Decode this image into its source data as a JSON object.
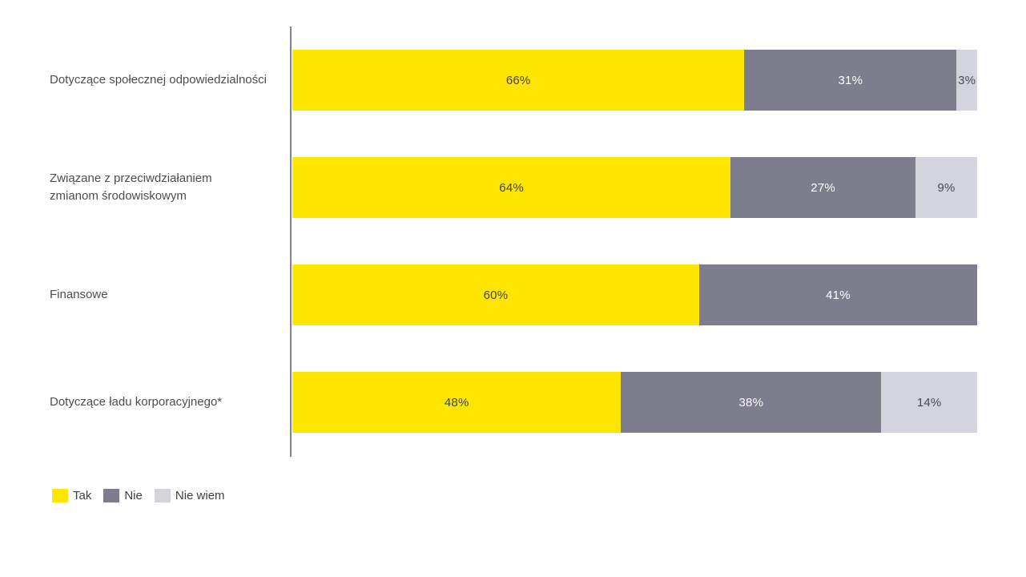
{
  "page": {
    "background": "#ffffff"
  },
  "chart_data": {
    "type": "bar",
    "variant": "horizontal-stacked",
    "title": "",
    "xlabel": "",
    "ylabel": "",
    "xlim": [
      0,
      100
    ],
    "grid": false,
    "legend_position": "bottom-left",
    "value_suffix": "%",
    "axis_color": "#82828c",
    "categories": [
      "Dotyczące społecznej odpowiedzialności",
      "Związane z przeciwdziałaniem\nzmianom środowiskowym",
      "Finansowe",
      "Dotyczące ładu korporacyjnego*"
    ],
    "series": [
      {
        "name": "Tak",
        "color": "#FFE600",
        "text_color": "#404040",
        "values": [
          66,
          64,
          60,
          48
        ]
      },
      {
        "name": "Nie",
        "color": "#7D7D8E",
        "text_color": "#ffffff",
        "values": [
          31,
          27,
          41,
          38
        ]
      },
      {
        "name": "Nie wiem",
        "color": "#D4D4DE",
        "text_color": "#4a4a4f",
        "values": [
          3,
          9,
          0,
          14
        ]
      }
    ]
  }
}
